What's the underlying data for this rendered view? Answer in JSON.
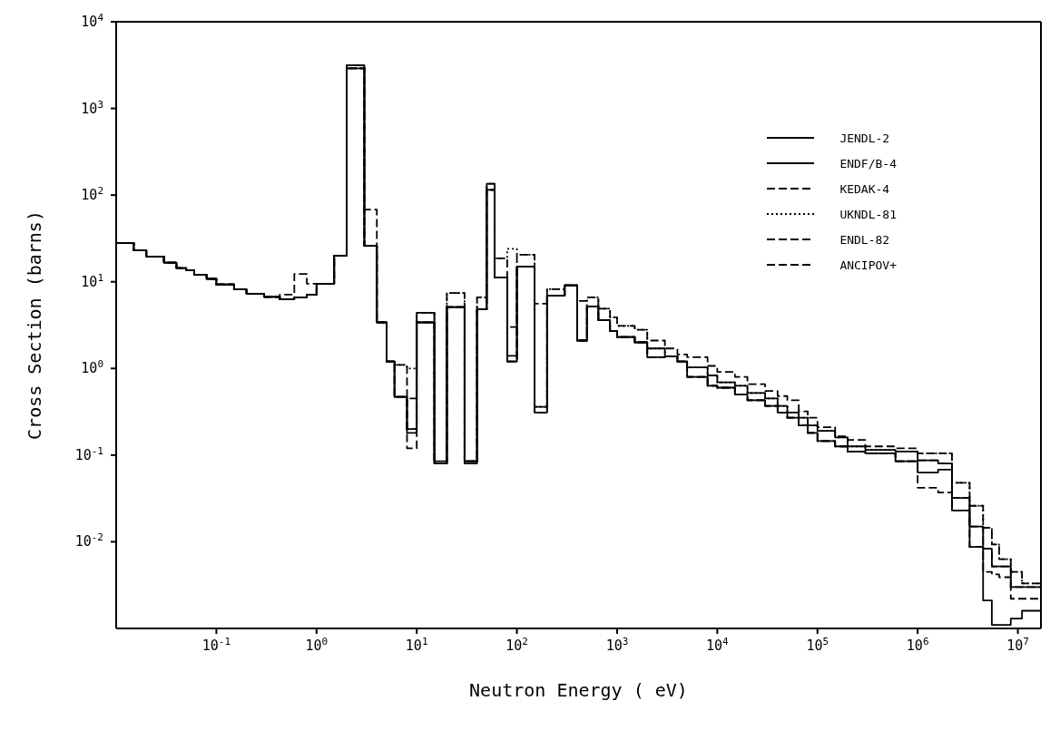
{
  "chart_data": {
    "type": "step",
    "xlabel": "Neutron Energy ( eV)",
    "ylabel": "Cross Section (barns)",
    "log": "xy",
    "legend": "top right",
    "marker": "none",
    "xlim": [
      0.01,
      17000000
    ],
    "ylim": [
      0.001,
      10000
    ],
    "xticks": [
      {
        "value": 0.1,
        "label": "10$^{-1}$"
      },
      {
        "value": 1,
        "label": "10$^{0}$"
      },
      {
        "value": 10,
        "label": "10$^{1}$"
      },
      {
        "value": 100,
        "label": "10$^{2}$"
      },
      {
        "value": 1000,
        "label": "10$^{3}$"
      },
      {
        "value": 10000,
        "label": "10$^{4}$"
      },
      {
        "value": 100000,
        "label": "10$^{5}$"
      },
      {
        "value": 1000000,
        "label": "10$^{6}$"
      },
      {
        "value": 10000000,
        "label": "10$^{7}$"
      }
    ],
    "yticks": [
      {
        "value": 0.01,
        "label": "10$^{-2}$"
      },
      {
        "value": 0.1,
        "label": "10$^{-1}$"
      },
      {
        "value": 1,
        "label": "10$^{0}$"
      },
      {
        "value": 10,
        "label": "10$^{1}$"
      },
      {
        "value": 100,
        "label": "10$^{2}$"
      },
      {
        "value": 1000,
        "label": "10$^{3}$"
      },
      {
        "value": 10000,
        "label": "10$^{4}$"
      }
    ],
    "x": [
      0.01,
      0.015,
      0.02,
      0.03,
      0.04,
      0.05,
      0.06,
      0.08,
      0.1,
      0.15,
      0.2,
      0.3,
      0.43,
      0.6,
      0.8,
      1,
      1.5,
      2,
      3,
      4,
      5,
      6,
      8,
      10,
      15,
      20,
      30,
      40,
      50,
      60,
      80,
      100,
      150,
      200,
      300,
      400,
      500,
      650,
      850,
      1000,
      1500,
      2000,
      3000,
      4000,
      5000,
      8000,
      10000,
      15000,
      20000,
      30000,
      40000,
      50000,
      65000,
      80000,
      100000,
      150000,
      200000,
      300000,
      600000,
      1000000,
      1600000,
      2200000,
      3300000,
      4500000,
      5500000,
      6500000,
      8500000,
      11000000,
      16000000,
      17000000
    ],
    "series": [
      {
        "name": "JENDL-2",
        "color": "#000000",
        "line_style": "solid",
        "values": [
          28,
          23,
          19.5,
          16.6,
          14.4,
          13.6,
          12,
          10.8,
          9.3,
          8.2,
          7.3,
          6.7,
          6.3,
          6.6,
          7.1,
          9.5,
          20,
          2900,
          26,
          3.4,
          1.2,
          0.47,
          0.2,
          3.4,
          0.08,
          5.1,
          0.085,
          4.8,
          115,
          11.2,
          1.2,
          15,
          0.31,
          6.9,
          9.1,
          2.1,
          5.2,
          3.6,
          2.7,
          2.3,
          2.0,
          1.7,
          1.38,
          1.2,
          1.03,
          0.83,
          0.69,
          0.63,
          0.52,
          0.45,
          0.37,
          0.31,
          0.27,
          0.22,
          0.19,
          0.16,
          0.126,
          0.115,
          0.11,
          0.087,
          0.08,
          0.032,
          0.015,
          0.0083,
          0.0052,
          0.0052,
          0.003,
          0.003,
          0.003,
          0.003
        ]
      },
      {
        "name": "ENDF/B-4",
        "color": "#000000",
        "line_style": "solid",
        "values": [
          28,
          23,
          19.5,
          16.6,
          14.4,
          13.6,
          12,
          10.8,
          9.3,
          8.2,
          7.3,
          6.7,
          6.3,
          6.6,
          7.1,
          9.5,
          20,
          3150,
          26,
          3.4,
          1.2,
          0.47,
          0.18,
          3.4,
          0.085,
          5.1,
          0.08,
          4.8,
          135,
          11.2,
          1.4,
          15,
          0.36,
          6.9,
          9.1,
          2.1,
          5.2,
          3.6,
          2.7,
          2.3,
          2.0,
          1.35,
          1.38,
          1.2,
          0.8,
          0.63,
          0.6,
          0.5,
          0.43,
          0.37,
          0.31,
          0.27,
          0.22,
          0.18,
          0.145,
          0.126,
          0.11,
          0.105,
          0.085,
          0.063,
          0.068,
          0.023,
          0.0087,
          0.0021,
          0.0011,
          0.0011,
          0.0013,
          0.0016,
          0.0016,
          0.0016
        ]
      },
      {
        "name": "KEDAK-4",
        "color": "#000000",
        "line_style": "dashed",
        "values": [
          28,
          23,
          19.5,
          16.6,
          14.4,
          13.6,
          12,
          10.8,
          9.3,
          8.2,
          7.3,
          6.7,
          7.1,
          12.3,
          9.5,
          9.5,
          20,
          3150,
          68,
          3.4,
          1.2,
          1.1,
          0.45,
          4.4,
          0.08,
          7.4,
          0.085,
          6.6,
          135,
          18.6,
          3,
          20.5,
          5.6,
          8.2,
          9.1,
          6,
          6.6,
          4.9,
          3.9,
          3.1,
          2.8,
          2.1,
          1.7,
          1.45,
          1.35,
          1.07,
          0.91,
          0.8,
          0.66,
          0.55,
          0.48,
          0.43,
          0.32,
          0.27,
          0.21,
          0.165,
          0.15,
          0.126,
          0.12,
          0.105,
          0.105,
          0.048,
          0.026,
          0.0145,
          0.0093,
          0.0063,
          0.0045,
          0.0033,
          0.0033,
          0.0033
        ]
      },
      {
        "name": "UKNDL-81",
        "color": "#000000",
        "line_style": "dotted",
        "values": [
          28,
          23,
          19.5,
          16.6,
          14.4,
          13.6,
          12,
          10.8,
          9.3,
          8.2,
          7.3,
          6.7,
          6.3,
          6.6,
          7.1,
          9.5,
          20,
          2900,
          26,
          3.4,
          1.2,
          1.1,
          1.0,
          4.4,
          0.08,
          7.4,
          0.085,
          6.6,
          115,
          18.6,
          24,
          20.5,
          0.36,
          8.2,
          9.1,
          2.1,
          6.6,
          4.9,
          3.9,
          3.1,
          2.8,
          1.7,
          1.38,
          1.2,
          1.03,
          0.83,
          0.69,
          0.63,
          0.52,
          0.45,
          0.37,
          0.31,
          0.27,
          0.22,
          0.19,
          0.16,
          0.126,
          0.115,
          0.11,
          0.105,
          0.105,
          0.048,
          0.026,
          0.0145,
          0.0093,
          0.0063,
          0.0045,
          0.0033,
          0.0033,
          0.0033
        ]
      },
      {
        "name": "ENDL-82",
        "color": "#000000",
        "line_style": "dashed",
        "values": [
          28,
          23,
          19.5,
          16.6,
          14.4,
          13.6,
          12,
          10.8,
          9.3,
          8.2,
          7.3,
          6.7,
          6.3,
          6.6,
          7.1,
          9.5,
          20,
          2900,
          26,
          3.4,
          1.2,
          0.47,
          0.2,
          3.4,
          0.08,
          5.1,
          0.085,
          4.8,
          115,
          11.2,
          1.2,
          15,
          0.31,
          6.9,
          9.1,
          2.1,
          5.2,
          3.6,
          2.7,
          2.3,
          2.0,
          1.35,
          1.38,
          1.2,
          0.8,
          0.63,
          0.6,
          0.5,
          0.43,
          0.37,
          0.31,
          0.27,
          0.22,
          0.18,
          0.145,
          0.126,
          0.11,
          0.105,
          0.085,
          0.087,
          0.08,
          0.032,
          0.015,
          0.0083,
          0.0052,
          0.0052,
          0.003,
          0.003,
          0.003,
          0.003
        ]
      },
      {
        "name": "ANCIPOV+",
        "color": "#000000",
        "line_style": "dashed",
        "values": [
          28,
          23,
          19.5,
          16.6,
          14.4,
          13.6,
          12,
          10.8,
          9.3,
          8.2,
          7.3,
          6.7,
          6.3,
          6.6,
          7.1,
          9.5,
          20,
          2900,
          26,
          3.4,
          1.2,
          0.47,
          0.12,
          4.4,
          0.08,
          5.1,
          0.085,
          4.8,
          115,
          11.2,
          1.2,
          15,
          0.31,
          6.9,
          9.1,
          2.1,
          5.2,
          3.6,
          2.7,
          2.3,
          2.0,
          1.35,
          1.38,
          1.2,
          0.8,
          0.63,
          0.6,
          0.5,
          0.43,
          0.37,
          0.31,
          0.27,
          0.22,
          0.18,
          0.145,
          0.126,
          0.11,
          0.105,
          0.085,
          0.042,
          0.037,
          0.023,
          0.0087,
          0.0045,
          0.0042,
          0.0039,
          0.0022,
          0.0022,
          0.0022,
          0.0022
        ]
      }
    ]
  }
}
